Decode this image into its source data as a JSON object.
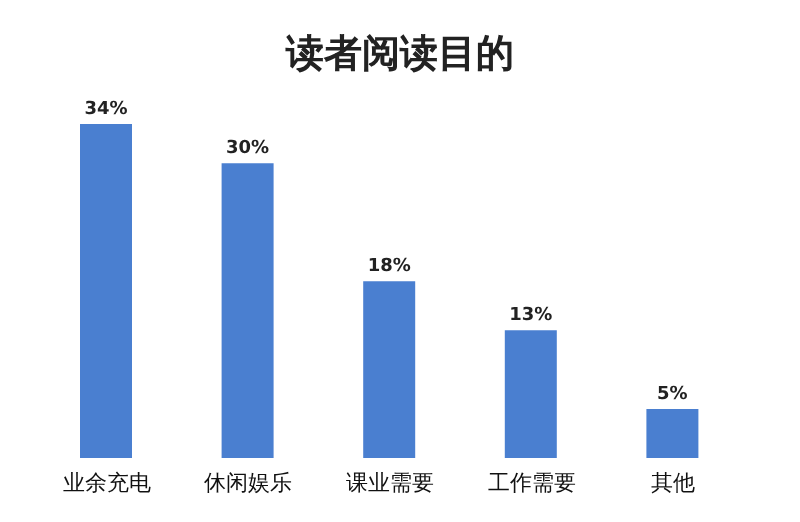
{
  "chart_data": {
    "type": "bar",
    "title": "读者阅读目的",
    "categories": [
      "业余充电",
      "休闲娱乐",
      "课业需要",
      "工作需要",
      "其他"
    ],
    "values": [
      34,
      30,
      18,
      13,
      5
    ],
    "value_labels": [
      "34%",
      "30%",
      "18%",
      "13%",
      "5%"
    ],
    "color": "#4a7fd0"
  }
}
